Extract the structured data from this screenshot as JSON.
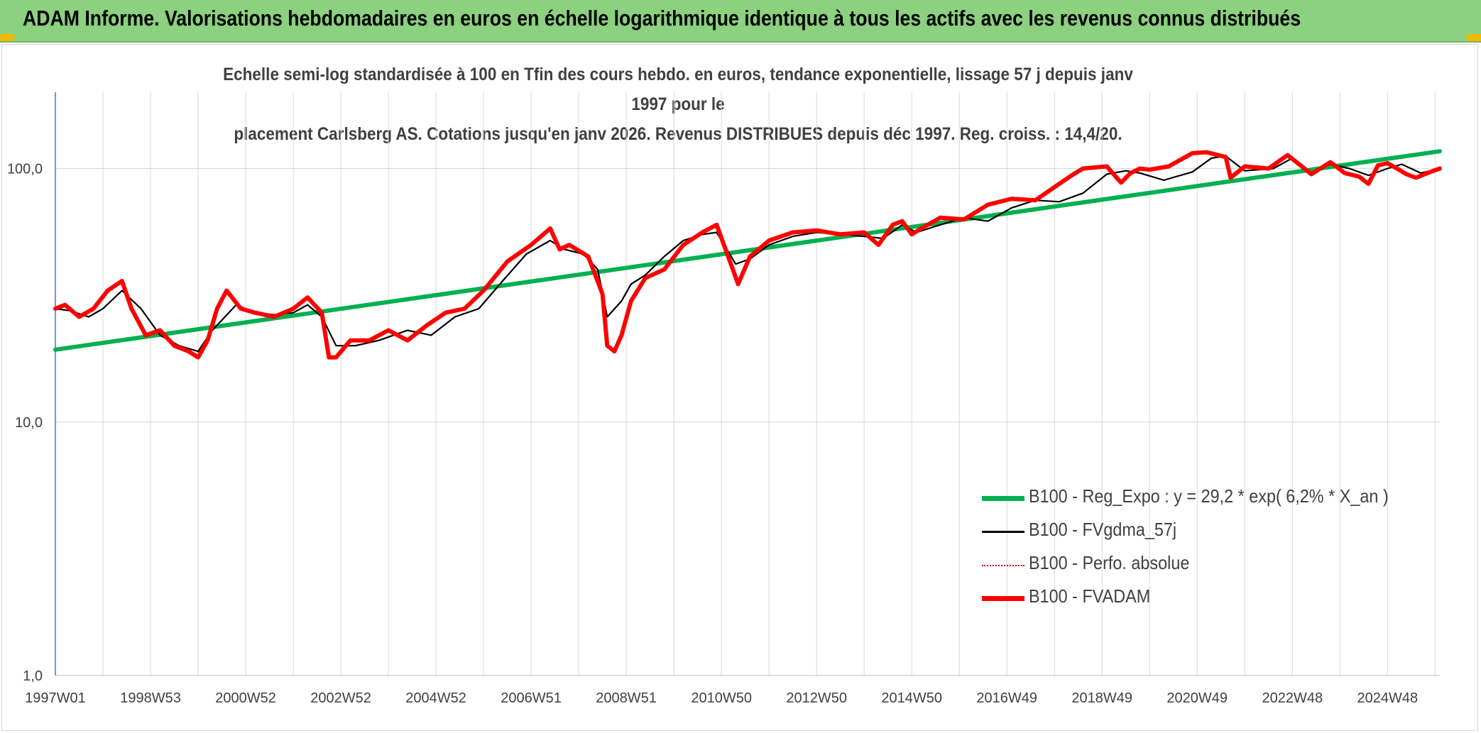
{
  "header": {
    "title": "ADAM Informe. Valorisations hebdomadaires en euros en échelle logarithmique identique à tous les actifs avec les revenus connus distribués"
  },
  "chart_data": {
    "type": "line",
    "title_line1": "Echelle semi-log standardisée à 100 en Tfin des cours hebdo. en euros, tendance exponentielle, lissage 57 j depuis janv 1997 pour le",
    "title_line2": "placement Carlsberg AS. Cotations jusqu'en janv 2026. Revenus DISTRIBUES depuis déc 1997. Reg. croiss. : 14,4/20.",
    "y_scale": "log",
    "ylim": [
      1,
      200
    ],
    "xlim": [
      1997.0,
      2026.1
    ],
    "y_ticks": [
      1,
      10,
      100
    ],
    "y_tick_labels": [
      "1,0",
      "10,0",
      "100,0"
    ],
    "x_ticks": [
      1997.0,
      1999.0,
      2001.0,
      2003.0,
      2005.0,
      2007.0,
      2009.0,
      2011.0,
      2013.0,
      2015.0,
      2017.0,
      2019.0,
      2021.0,
      2023.0,
      2025.0
    ],
    "x_tick_labels": [
      "1997W01",
      "1998W53",
      "2000W52",
      "2002W52",
      "2004W52",
      "2006W51",
      "2008W51",
      "2010W50",
      "2012W50",
      "2014W50",
      "2016W49",
      "2018W49",
      "2020W49",
      "2022W48",
      "2024W48"
    ],
    "grid": true,
    "legend_position": "bottom-right",
    "series": [
      {
        "name": "B100 - Reg_Expo : y = 29,2 * exp( 6,2% *  X_an )",
        "color": "#00b050",
        "style": "thick",
        "x": [
          1997.0,
          2026.1
        ],
        "values": [
          19.3,
          117
        ]
      },
      {
        "name": "B100 - FVgdma_57j",
        "color": "#000000",
        "style": "thin",
        "x": [
          1997.0,
          1997.3,
          1997.7,
          1998.0,
          1998.4,
          1998.8,
          1999.2,
          1999.6,
          2000.0,
          2000.3,
          2000.8,
          2001.2,
          2001.6,
          2002.0,
          2002.3,
          2002.6,
          2002.9,
          2003.3,
          2003.8,
          2004.4,
          2004.9,
          2005.4,
          2005.9,
          2006.4,
          2006.9,
          2007.4,
          2007.7,
          2008.1,
          2008.4,
          2008.6,
          2008.9,
          2009.1,
          2009.4,
          2009.8,
          2010.2,
          2010.6,
          2010.9,
          2011.3,
          2011.6,
          2012.0,
          2012.5,
          2013.0,
          2013.5,
          2014.0,
          2014.4,
          2014.8,
          2015.1,
          2015.6,
          2016.1,
          2016.6,
          2017.1,
          2017.6,
          2018.1,
          2018.6,
          2019.1,
          2019.5,
          2019.8,
          2020.3,
          2020.9,
          2021.3,
          2021.6,
          2022.0,
          2022.6,
          2023.0,
          2023.4,
          2023.8,
          2024.2,
          2024.6,
          2025.0,
          2025.3,
          2025.7,
          2026.1
        ],
        "values": [
          28,
          27.5,
          26,
          28,
          33,
          28,
          22,
          20,
          19,
          23,
          29,
          27,
          26.5,
          27,
          29,
          26,
          20,
          20,
          21,
          23,
          22,
          26,
          28,
          36,
          46,
          52,
          48,
          46,
          40,
          26,
          30,
          35,
          38,
          45,
          52,
          55,
          56,
          42,
          44,
          50,
          54,
          56,
          55,
          54,
          53,
          60,
          56,
          60,
          64,
          62,
          70,
          75,
          74,
          80,
          95,
          98,
          96,
          90,
          97,
          110,
          112,
          98,
          100,
          110,
          96,
          104,
          100,
          94,
          100,
          104,
          96,
          100
        ]
      },
      {
        "name": "B100 - Perfo. absolue",
        "color": "#c00000",
        "style": "dotted",
        "x": [],
        "values": []
      },
      {
        "name": "B100 - FVADAM",
        "color": "#ff0000",
        "style": "thick",
        "x": [
          1997.0,
          1997.2,
          1997.5,
          1997.8,
          1998.1,
          1998.4,
          1998.6,
          1998.9,
          1999.2,
          1999.5,
          1999.8,
          2000.0,
          2000.2,
          2000.4,
          2000.6,
          2000.9,
          2001.2,
          2001.6,
          2002.0,
          2002.3,
          2002.6,
          2002.75,
          2002.9,
          2003.2,
          2003.6,
          2004.0,
          2004.4,
          2004.8,
          2005.2,
          2005.6,
          2006.0,
          2006.5,
          2007.0,
          2007.4,
          2007.6,
          2007.8,
          2008.2,
          2008.5,
          2008.6,
          2008.75,
          2008.9,
          2009.1,
          2009.4,
          2009.8,
          2010.2,
          2010.6,
          2010.9,
          2011.2,
          2011.35,
          2011.6,
          2012.0,
          2012.5,
          2013.0,
          2013.5,
          2014.0,
          2014.3,
          2014.6,
          2014.8,
          2015.0,
          2015.2,
          2015.6,
          2016.1,
          2016.6,
          2017.1,
          2017.6,
          2018.1,
          2018.4,
          2018.6,
          2019.1,
          2019.4,
          2019.6,
          2019.8,
          2020.0,
          2020.4,
          2020.9,
          2021.2,
          2021.6,
          2021.7,
          2022.0,
          2022.5,
          2022.9,
          2023.2,
          2023.4,
          2023.8,
          2024.1,
          2024.4,
          2024.6,
          2024.8,
          2025.0,
          2025.2,
          2025.4,
          2025.6,
          2025.9,
          2026.1
        ],
        "values": [
          28,
          29,
          26,
          28,
          33,
          36,
          28,
          22,
          23,
          20,
          19,
          18,
          21,
          28,
          33,
          28,
          27,
          26,
          28,
          31,
          27,
          18,
          18,
          21,
          21,
          23,
          21,
          24,
          27,
          28,
          33,
          43,
          50,
          58,
          48,
          50,
          45,
          32,
          20,
          19,
          22,
          30,
          37,
          40,
          50,
          56,
          60,
          42,
          35,
          45,
          52,
          56,
          57,
          55,
          56,
          50,
          60,
          62,
          55,
          58,
          64,
          63,
          72,
          76,
          75,
          87,
          95,
          100,
          102,
          88,
          96,
          100,
          99,
          102,
          115,
          116,
          111,
          92,
          102,
          100,
          113,
          102,
          95,
          106,
          96,
          93,
          87,
          103,
          105,
          100,
          95,
          92,
          97,
          100
        ]
      }
    ]
  }
}
